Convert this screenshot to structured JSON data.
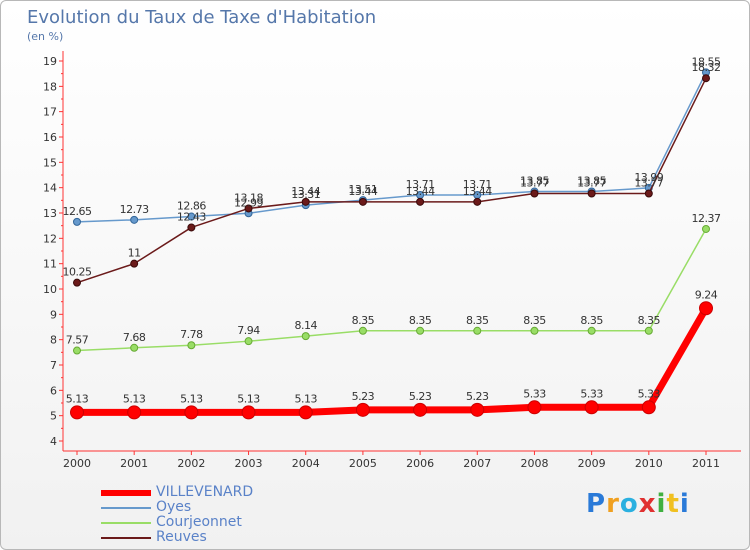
{
  "title": "Evolution du Taux de Taxe d'Habitation",
  "subtitle": "(en %)",
  "logo": "Proxiti",
  "chart_data": {
    "type": "line",
    "x": [
      "2000",
      "2001",
      "2002",
      "2003",
      "2004",
      "2005",
      "2006",
      "2007",
      "2008",
      "2009",
      "2010",
      "2011"
    ],
    "ylim": [
      4,
      19
    ],
    "yticks": [
      "4",
      "5",
      "6",
      "7",
      "8",
      "9",
      "10",
      "11",
      "12",
      "13",
      "14",
      "15",
      "16",
      "17",
      "18",
      "19"
    ],
    "grid": false,
    "legend_position": "bottom-left",
    "series": [
      {
        "name": "VILLEVENARD",
        "color": "#ff0000",
        "values": [
          5.13,
          5.13,
          5.13,
          5.13,
          5.13,
          5.23,
          5.23,
          5.23,
          5.33,
          5.33,
          5.33,
          9.24
        ],
        "labels": [
          "5.13",
          "5.13",
          "5.13",
          "5.13",
          "5.13",
          "5.23",
          "5.23",
          "5.23",
          "5.33",
          "5.33",
          "5.33",
          "9.24"
        ]
      },
      {
        "name": "Oyes",
        "color": "#6699cc",
        "values": [
          12.65,
          12.73,
          12.86,
          12.99,
          13.31,
          13.51,
          13.71,
          13.71,
          13.85,
          13.85,
          13.99,
          18.55
        ],
        "labels": [
          "12.65",
          "12.73",
          "12.86",
          "12.99",
          "13.31",
          "13.51",
          "13.71",
          "13.71",
          "13.85",
          "13.85",
          "13.99",
          "18.55"
        ]
      },
      {
        "name": "Courjeonnet",
        "color": "#99dd66",
        "values": [
          7.57,
          7.68,
          7.78,
          7.94,
          8.14,
          8.35,
          8.35,
          8.35,
          8.35,
          8.35,
          8.35,
          12.37
        ],
        "labels": [
          "7.57",
          "7.68",
          "7.78",
          "7.94",
          "8.14",
          "8.35",
          "8.35",
          "8.35",
          "8.35",
          "8.35",
          "8.35",
          "12.37"
        ]
      },
      {
        "name": "Reuves",
        "color": "#6b1a1a",
        "values": [
          10.25,
          11,
          12.43,
          13.18,
          13.44,
          13.44,
          13.44,
          13.44,
          13.77,
          13.77,
          13.77,
          18.32
        ],
        "labels": [
          "10.25",
          "11",
          "12.43",
          "13.18",
          "13.44",
          "13.44",
          "13.44",
          "13.44",
          "13.77",
          "13.77",
          "13.77",
          "18.32"
        ]
      }
    ]
  }
}
